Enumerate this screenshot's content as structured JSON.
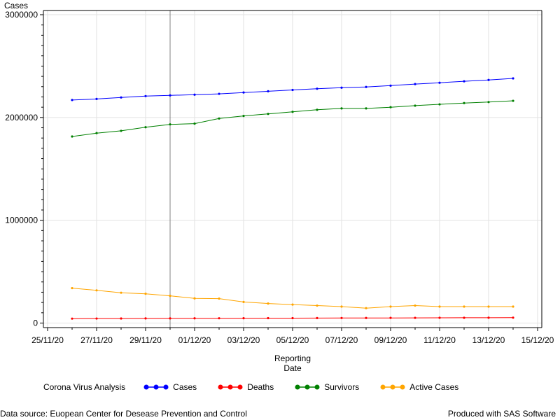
{
  "chart_data": {
    "type": "line",
    "title": "",
    "ylabel": "Cases",
    "xlabel_lines": [
      "Reporting",
      "Date"
    ],
    "x_ticks": [
      "25/11/20",
      "27/11/20",
      "29/11/20",
      "01/12/20",
      "03/12/20",
      "05/12/20",
      "07/12/20",
      "09/12/20",
      "11/12/20",
      "13/12/20",
      "15/12/20"
    ],
    "y_ticks": [
      "0",
      "1000000",
      "2000000",
      "3000000"
    ],
    "ylim": [
      0,
      3000000
    ],
    "xlim": [
      "25/11/20",
      "15/12/20"
    ],
    "grid": true,
    "reference_line_x": "30/11/20",
    "x": [
      "26/11/20",
      "27/11/20",
      "28/11/20",
      "29/11/20",
      "30/11/20",
      "01/12/20",
      "02/12/20",
      "03/12/20",
      "04/12/20",
      "05/12/20",
      "06/12/20",
      "07/12/20",
      "08/12/20",
      "09/12/20",
      "10/12/20",
      "11/12/20",
      "12/12/20",
      "13/12/20",
      "14/12/20"
    ],
    "series": [
      {
        "name": "Cases",
        "color": "#0000ff",
        "values": [
          2170000,
          2180000,
          2195000,
          2208000,
          2215000,
          2222000,
          2230000,
          2243000,
          2255000,
          2268000,
          2280000,
          2290000,
          2297000,
          2310000,
          2325000,
          2338000,
          2352000,
          2365000,
          2380000
        ]
      },
      {
        "name": "Deaths",
        "color": "#ff0000",
        "values": [
          43000,
          44000,
          44500,
          45000,
          45500,
          46000,
          46500,
          47000,
          47500,
          48000,
          48500,
          49000,
          49500,
          50000,
          50500,
          51000,
          51500,
          52000,
          52500
        ]
      },
      {
        "name": "Survivors",
        "color": "#008000",
        "values": [
          1815000,
          1848000,
          1870000,
          1905000,
          1933000,
          1940000,
          1990000,
          2015000,
          2035000,
          2055000,
          2075000,
          2088000,
          2088000,
          2100000,
          2115000,
          2128000,
          2140000,
          2150000,
          2162000
        ]
      },
      {
        "name": "Active Cases",
        "color": "#ffa500",
        "values": [
          340000,
          318000,
          295000,
          285000,
          265000,
          240000,
          238000,
          205000,
          190000,
          180000,
          170000,
          160000,
          145000,
          160000,
          170000,
          160000,
          160000,
          160000,
          160000
        ]
      }
    ]
  },
  "legend": {
    "title": "Corona Virus Analysis",
    "items": [
      {
        "label": "Cases",
        "color": "#0000ff"
      },
      {
        "label": "Deaths",
        "color": "#ff0000"
      },
      {
        "label": "Survivors",
        "color": "#008000"
      },
      {
        "label": "Active Cases",
        "color": "#ffa500"
      }
    ]
  },
  "footer": {
    "left": "Data source: Euopean Center for Desease Prevention and Control",
    "right": "Produced with SAS Software"
  }
}
